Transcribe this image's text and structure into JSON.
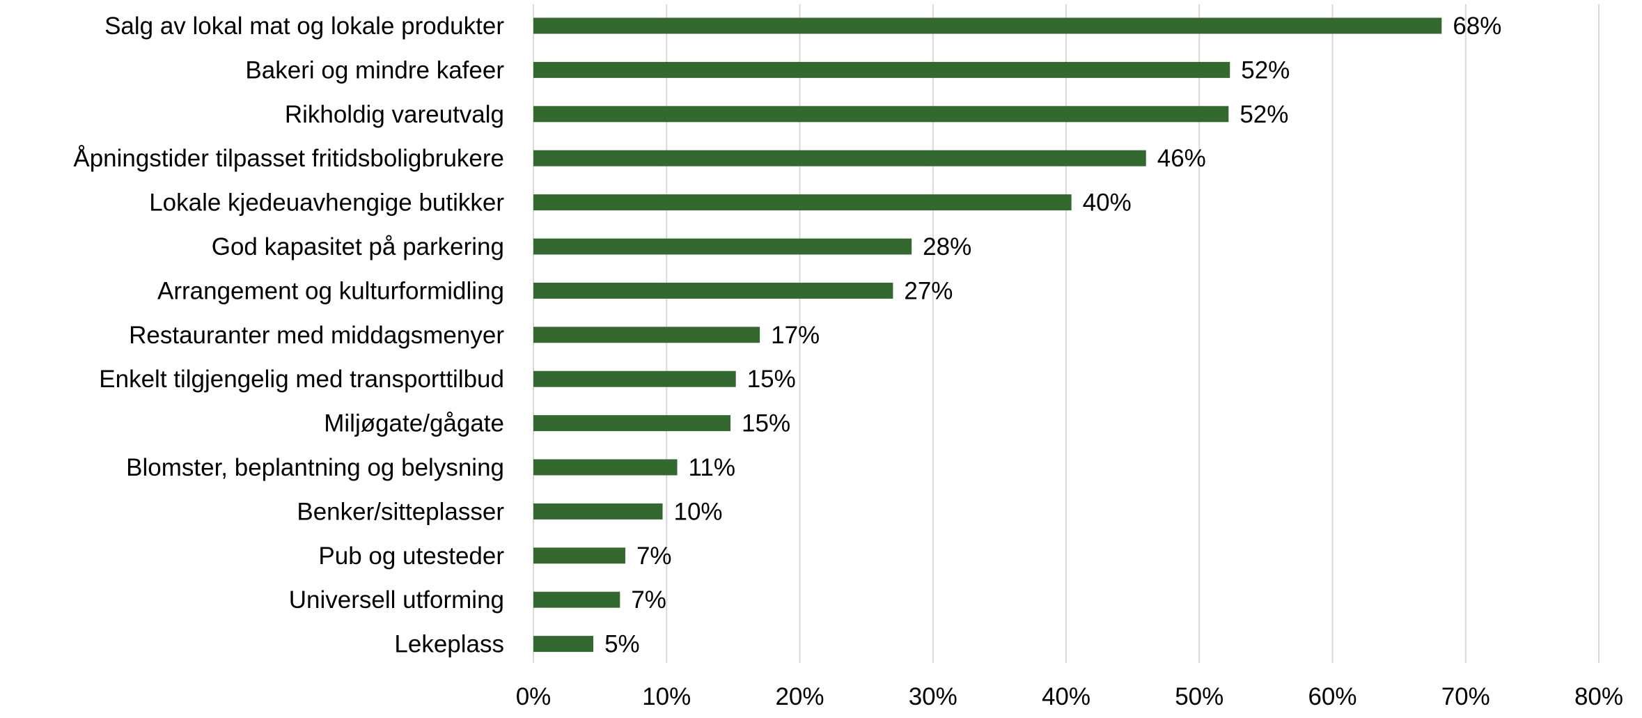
{
  "chart_data": {
    "type": "bar",
    "orientation": "horizontal",
    "title": "",
    "xlabel": "",
    "ylabel": "",
    "categories": [
      "Salg av lokal mat og lokale produkter",
      "Bakeri og mindre kafeer",
      "Rikholdig vareutvalg",
      "Åpningstider tilpasset fritidsboligbrukere",
      "Lokale kjedeuavhengige butikker",
      "God kapasitet på parkering",
      "Arrangement og kulturformidling",
      "Restauranter med middagsmenyer",
      "Enkelt tilgjengelig med transporttilbud",
      "Miljøgate/gågate",
      "Blomster, beplantning og belysning",
      "Benker/sitteplasser",
      "Pub og utesteder",
      "Universell utforming",
      "Lekeplass"
    ],
    "values": [
      68.2,
      52.3,
      52.2,
      46.0,
      40.4,
      28.4,
      27.0,
      17.0,
      15.2,
      14.8,
      10.8,
      9.7,
      6.9,
      6.5,
      4.5
    ],
    "data_labels": [
      "68%",
      "52%",
      "52%",
      "46%",
      "40%",
      "28%",
      "27%",
      "17%",
      "15%",
      "15%",
      "11%",
      "10%",
      "7%",
      "7%",
      "5%"
    ],
    "xlim": [
      0,
      80
    ],
    "x_ticks": [
      0,
      10,
      20,
      30,
      40,
      50,
      60,
      70,
      80
    ],
    "x_tick_labels": [
      "0%",
      "10%",
      "20%",
      "30%",
      "40%",
      "50%",
      "60%",
      "70%",
      "80%"
    ],
    "grid": "vertical",
    "legend": "none",
    "bar_color": "#33692e"
  }
}
